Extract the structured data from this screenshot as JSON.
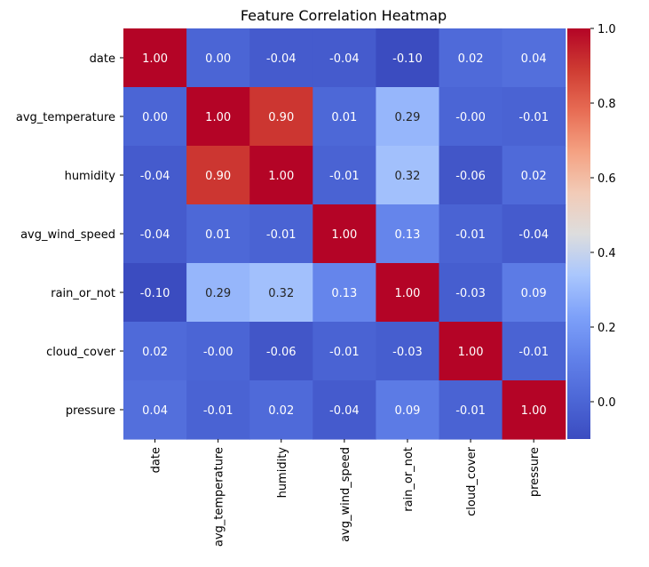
{
  "chart_data": {
    "type": "heatmap",
    "title": "Feature Correlation Heatmap",
    "xlabel": "",
    "ylabel": "",
    "row_labels": [
      "date",
      "avg_temperature",
      "humidity",
      "avg_wind_speed",
      "rain_or_not",
      "cloud_cover",
      "pressure"
    ],
    "col_labels": [
      "date",
      "avg_temperature",
      "humidity",
      "avg_wind_speed",
      "rain_or_not",
      "cloud_cover",
      "pressure"
    ],
    "values": [
      [
        1.0,
        0.0,
        -0.04,
        -0.04,
        -0.1,
        0.02,
        0.04
      ],
      [
        0.0,
        1.0,
        0.9,
        0.01,
        0.29,
        -0.0,
        -0.01
      ],
      [
        -0.04,
        0.9,
        1.0,
        -0.01,
        0.32,
        -0.06,
        0.02
      ],
      [
        -0.04,
        0.01,
        -0.01,
        1.0,
        0.13,
        -0.01,
        -0.04
      ],
      [
        -0.1,
        0.29,
        0.32,
        0.13,
        1.0,
        -0.03,
        0.09
      ],
      [
        0.02,
        -0.0,
        -0.06,
        -0.01,
        -0.03,
        1.0,
        -0.01
      ],
      [
        0.04,
        -0.01,
        0.02,
        -0.04,
        0.09,
        -0.01,
        1.0
      ]
    ],
    "cell_labels": [
      [
        "1.00",
        "0.00",
        "-0.04",
        "-0.04",
        "-0.10",
        "0.02",
        "0.04"
      ],
      [
        "0.00",
        "1.00",
        "0.90",
        "0.01",
        "0.29",
        "-0.00",
        "-0.01"
      ],
      [
        "-0.04",
        "0.90",
        "1.00",
        "-0.01",
        "0.32",
        "-0.06",
        "0.02"
      ],
      [
        "-0.04",
        "0.01",
        "-0.01",
        "1.00",
        "0.13",
        "-0.01",
        "-0.04"
      ],
      [
        "-0.10",
        "0.29",
        "0.32",
        "0.13",
        "1.00",
        "-0.03",
        "0.09"
      ],
      [
        "0.02",
        "-0.00",
        "-0.06",
        "-0.01",
        "-0.03",
        "1.00",
        "-0.01"
      ],
      [
        "0.04",
        "-0.01",
        "0.02",
        "-0.04",
        "0.09",
        "-0.01",
        "1.00"
      ]
    ],
    "colormap": "coolwarm",
    "color_range": [
      -0.1,
      1.0
    ],
    "colorbar_ticks": [
      0.0,
      0.2,
      0.4,
      0.6,
      0.8,
      1.0
    ],
    "colorbar_tick_labels": [
      "0.0",
      "0.2",
      "0.4",
      "0.6",
      "0.8",
      "1.0"
    ],
    "grid": false,
    "legend_position": "right"
  }
}
